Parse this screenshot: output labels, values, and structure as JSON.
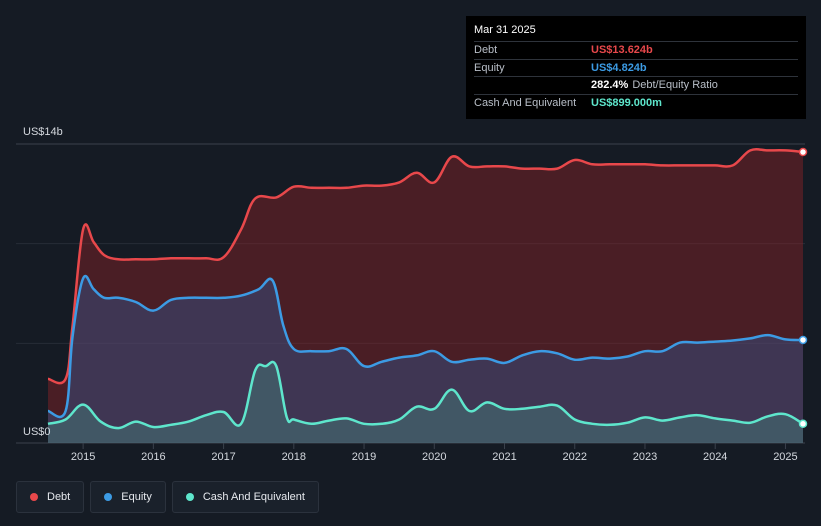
{
  "tooltip": {
    "date": "Mar 31 2025",
    "rows": [
      {
        "label": "Debt",
        "value": "US$13.624b",
        "color": "#e8484b"
      },
      {
        "label": "Equity",
        "value": "US$4.824b",
        "color": "#3c9be4"
      },
      {
        "label": "",
        "value": "282.4%",
        "suffix": "Debt/Equity Ratio",
        "color": "#ffffff"
      },
      {
        "label": "Cash And Equivalent",
        "value": "US$899.000m",
        "color": "#5ee6cc"
      }
    ]
  },
  "legend": [
    {
      "label": "Debt",
      "color": "#e8484b"
    },
    {
      "label": "Equity",
      "color": "#3c9be4"
    },
    {
      "label": "Cash And Equivalent",
      "color": "#5ee6cc"
    }
  ],
  "chart_data": {
    "type": "area",
    "y_top_label": "US$14b",
    "y_bottom_label": "US$0",
    "ylim": [
      0,
      14
    ],
    "xlim": [
      2014.5,
      2025.25
    ],
    "x_ticks": [
      "2015",
      "2016",
      "2017",
      "2018",
      "2019",
      "2020",
      "2021",
      "2022",
      "2023",
      "2024",
      "2025"
    ],
    "grid": true,
    "legend_position": "bottom-left",
    "series": [
      {
        "name": "Debt",
        "color": "#e8484b",
        "x": [
          2014.5,
          2014.75,
          2014.85,
          2015.0,
          2015.15,
          2015.3,
          2015.5,
          2015.75,
          2016.0,
          2016.25,
          2016.5,
          2016.75,
          2017.0,
          2017.25,
          2017.45,
          2017.75,
          2018.0,
          2018.25,
          2018.5,
          2018.75,
          2019.0,
          2019.25,
          2019.5,
          2019.75,
          2020.0,
          2020.25,
          2020.5,
          2020.75,
          2021.0,
          2021.25,
          2021.5,
          2021.75,
          2022.0,
          2022.25,
          2022.5,
          2022.75,
          2023.0,
          2023.25,
          2023.5,
          2023.75,
          2024.0,
          2024.25,
          2024.5,
          2024.75,
          2025.0,
          2025.25
        ],
        "values": [
          3.0,
          3.0,
          5.5,
          10.0,
          9.4,
          8.8,
          8.6,
          8.6,
          8.6,
          8.65,
          8.65,
          8.65,
          8.7,
          10.0,
          11.45,
          11.5,
          12.0,
          11.95,
          11.95,
          11.95,
          12.05,
          12.05,
          12.2,
          12.65,
          12.2,
          13.4,
          12.95,
          12.95,
          12.95,
          12.85,
          12.85,
          12.85,
          13.25,
          13.05,
          13.05,
          13.05,
          13.05,
          13.0,
          13.0,
          13.0,
          13.0,
          13.0,
          13.7,
          13.7,
          13.7,
          13.624
        ]
      },
      {
        "name": "Equity",
        "color": "#3c9be4",
        "x": [
          2014.5,
          2014.75,
          2014.85,
          2015.0,
          2015.15,
          2015.3,
          2015.5,
          2015.75,
          2016.0,
          2016.25,
          2016.5,
          2016.75,
          2017.0,
          2017.25,
          2017.5,
          2017.7,
          2017.85,
          2018.0,
          2018.25,
          2018.5,
          2018.75,
          2019.0,
          2019.25,
          2019.5,
          2019.75,
          2020.0,
          2020.25,
          2020.5,
          2020.75,
          2021.0,
          2021.25,
          2021.5,
          2021.75,
          2022.0,
          2022.25,
          2022.5,
          2022.75,
          2023.0,
          2023.25,
          2023.5,
          2023.75,
          2024.0,
          2024.25,
          2024.5,
          2024.75,
          2025.0,
          2025.25
        ],
        "values": [
          1.5,
          1.5,
          5.0,
          7.7,
          7.2,
          6.8,
          6.8,
          6.6,
          6.2,
          6.7,
          6.8,
          6.8,
          6.8,
          6.9,
          7.2,
          7.6,
          5.5,
          4.4,
          4.3,
          4.3,
          4.4,
          3.6,
          3.8,
          4.0,
          4.1,
          4.3,
          3.8,
          3.9,
          3.95,
          3.75,
          4.1,
          4.3,
          4.2,
          3.9,
          4.0,
          3.95,
          4.05,
          4.3,
          4.3,
          4.7,
          4.7,
          4.75,
          4.8,
          4.9,
          5.05,
          4.85,
          4.824
        ]
      },
      {
        "name": "Cash And Equivalent",
        "color": "#5ee6cc",
        "x": [
          2014.5,
          2014.75,
          2015.0,
          2015.25,
          2015.5,
          2015.75,
          2016.0,
          2016.25,
          2016.5,
          2016.75,
          2017.0,
          2017.25,
          2017.45,
          2017.6,
          2017.75,
          2017.9,
          2018.0,
          2018.25,
          2018.5,
          2018.75,
          2019.0,
          2019.25,
          2019.5,
          2019.75,
          2020.0,
          2020.25,
          2020.5,
          2020.75,
          2021.0,
          2021.25,
          2021.5,
          2021.75,
          2022.0,
          2022.25,
          2022.5,
          2022.75,
          2023.0,
          2023.25,
          2023.5,
          2023.75,
          2024.0,
          2024.25,
          2024.5,
          2024.75,
          2025.0,
          2025.25
        ],
        "values": [
          0.9,
          1.1,
          1.8,
          1.0,
          0.7,
          1.0,
          0.75,
          0.85,
          1.0,
          1.3,
          1.45,
          0.9,
          3.4,
          3.6,
          3.6,
          1.2,
          1.1,
          0.9,
          1.05,
          1.15,
          0.9,
          0.9,
          1.1,
          1.7,
          1.6,
          2.5,
          1.5,
          1.9,
          1.6,
          1.6,
          1.7,
          1.75,
          1.1,
          0.9,
          0.85,
          0.95,
          1.2,
          1.05,
          1.2,
          1.3,
          1.15,
          1.05,
          0.95,
          1.25,
          1.35,
          0.899
        ]
      }
    ]
  }
}
